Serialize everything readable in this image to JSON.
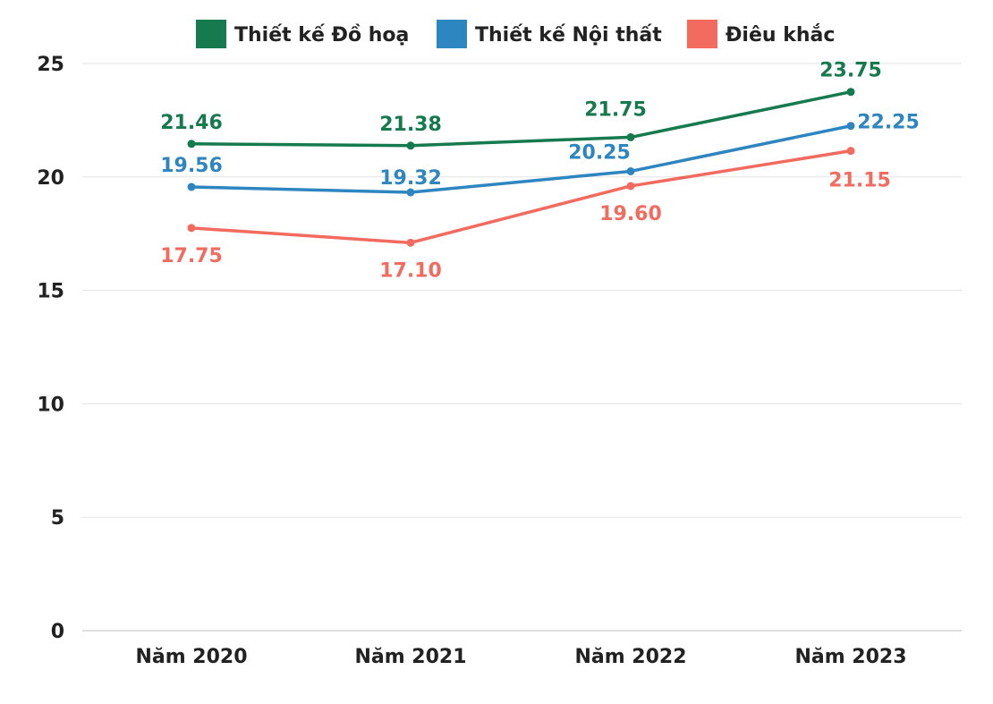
{
  "chart_data": {
    "type": "line",
    "title": "",
    "xlabel": "",
    "ylabel": "",
    "categories": [
      "Năm 2020",
      "Năm 2021",
      "Năm 2022",
      "Năm 2023"
    ],
    "ylim": [
      0,
      25
    ],
    "yticks": [
      0,
      5,
      10,
      15,
      20,
      25
    ],
    "grid": true,
    "legend_position": "top",
    "series": [
      {
        "name": "Thiết kế Đồ hoạ",
        "color": "#157A4E",
        "values": [
          21.46,
          21.38,
          21.75,
          23.75
        ],
        "labels": [
          "21.46",
          "21.38",
          "21.75",
          "23.75"
        ]
      },
      {
        "name": "Thiết kế Nội thất",
        "color": "#2E86C1",
        "values": [
          19.56,
          19.32,
          20.25,
          22.25
        ],
        "labels": [
          "19.56",
          "19.32",
          "20.25",
          "22.25"
        ]
      },
      {
        "name": "Điêu khắc",
        "color": "#F26B5E",
        "values": [
          17.75,
          17.1,
          19.6,
          21.15
        ],
        "labels": [
          "17.75",
          "17.10",
          "19.60",
          "21.15"
        ]
      }
    ]
  }
}
